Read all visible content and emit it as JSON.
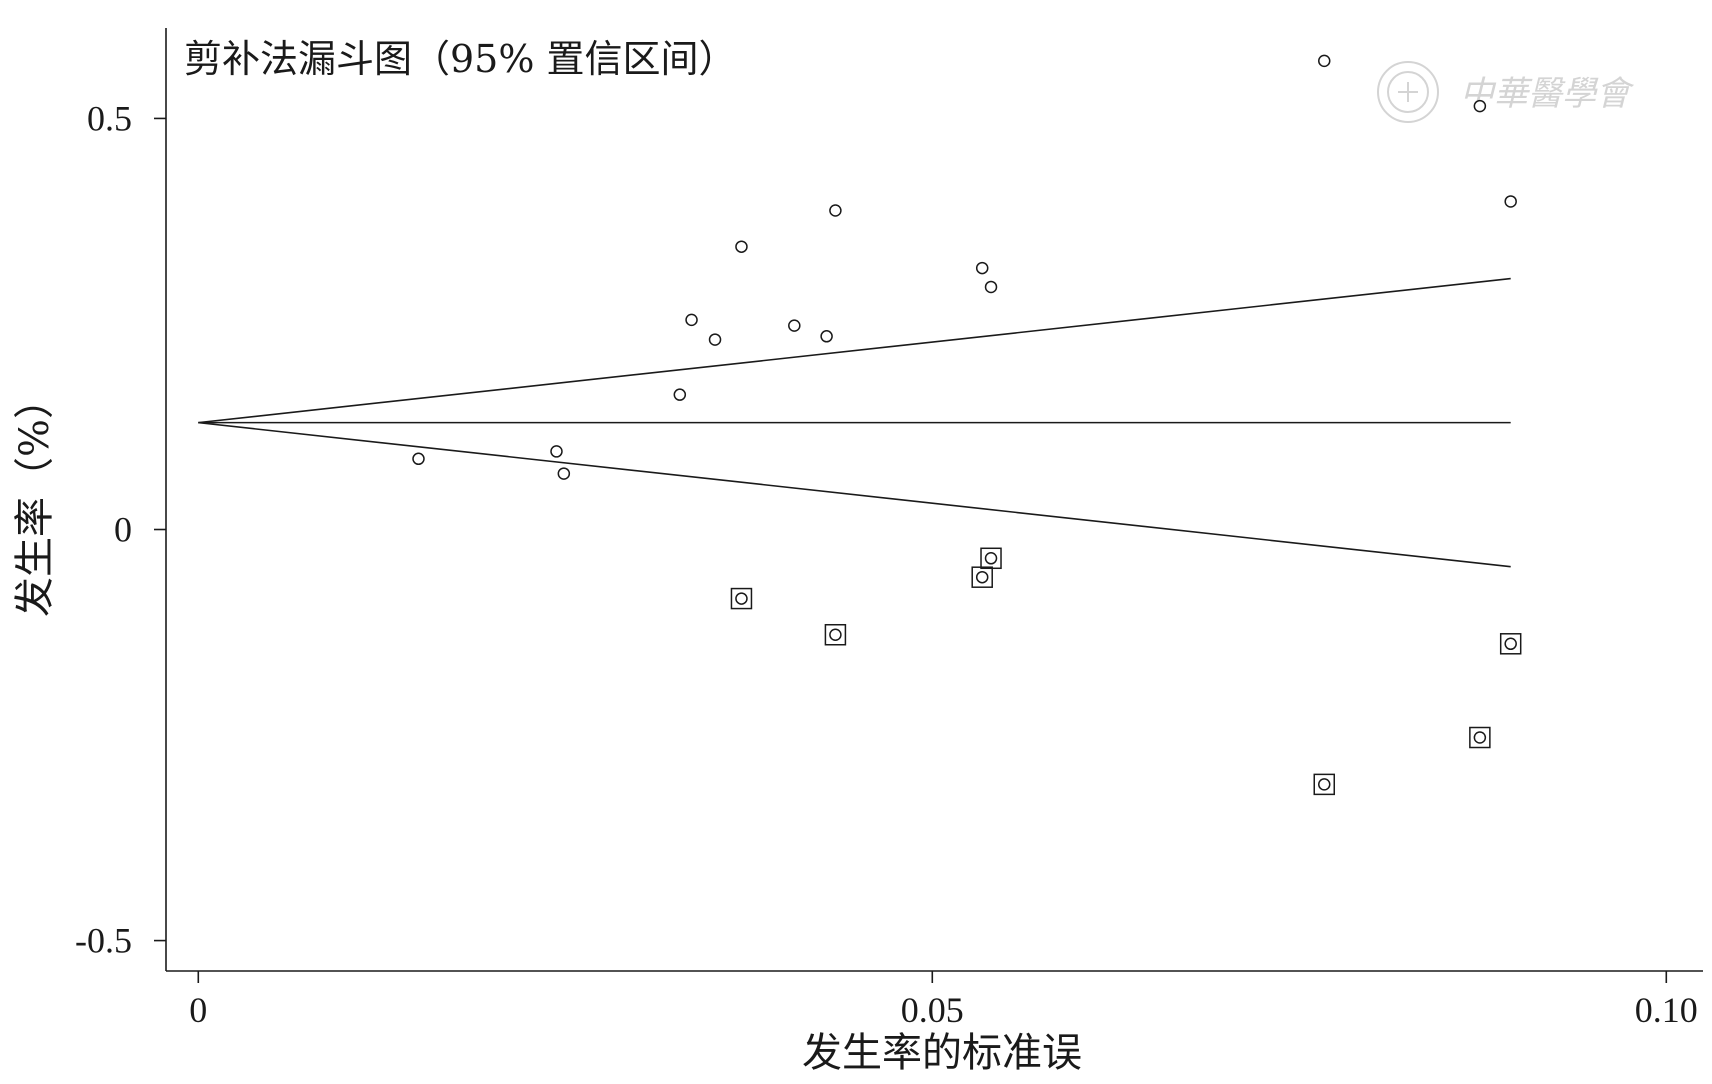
{
  "chart_data": {
    "type": "scatter",
    "title": "剪补法漏斗图（95% 置信区间）",
    "xlabel": "发生率的标准误",
    "ylabel": "发生率（%）",
    "xlim": [
      -0.0022,
      0.1025
    ],
    "ylim": [
      -0.537,
      0.61
    ],
    "x_ticks": [
      {
        "value": 0,
        "label": "0"
      },
      {
        "value": 0.05,
        "label": "0.05"
      },
      {
        "value": 0.1,
        "label": "0.10"
      }
    ],
    "y_ticks": [
      {
        "value": 0.5,
        "label": "0.5"
      },
      {
        "value": 0,
        "label": "0"
      },
      {
        "value": -0.5,
        "label": "-0.5"
      }
    ],
    "pooled_estimate": 0.13,
    "funnel_se_max": 0.0894,
    "funnel_z": 1.96,
    "observed_studies": [
      {
        "se": 0.015,
        "rate": 0.086
      },
      {
        "se": 0.0244,
        "rate": 0.095
      },
      {
        "se": 0.0249,
        "rate": 0.068
      },
      {
        "se": 0.0328,
        "rate": 0.164
      },
      {
        "se": 0.0336,
        "rate": 0.255
      },
      {
        "se": 0.0352,
        "rate": 0.231
      },
      {
        "se": 0.037,
        "rate": 0.344
      },
      {
        "se": 0.0406,
        "rate": 0.248
      },
      {
        "se": 0.0428,
        "rate": 0.235
      },
      {
        "se": 0.0434,
        "rate": 0.388
      },
      {
        "se": 0.0534,
        "rate": 0.318
      },
      {
        "se": 0.054,
        "rate": 0.295
      },
      {
        "se": 0.0767,
        "rate": 0.57
      },
      {
        "se": 0.0873,
        "rate": 0.515
      },
      {
        "se": 0.0894,
        "rate": 0.399
      }
    ],
    "imputed_studies": [
      {
        "se": 0.037,
        "rate": -0.084
      },
      {
        "se": 0.0434,
        "rate": -0.128
      },
      {
        "se": 0.0534,
        "rate": -0.058
      },
      {
        "se": 0.054,
        "rate": -0.035
      },
      {
        "se": 0.0767,
        "rate": -0.31
      },
      {
        "se": 0.0873,
        "rate": -0.253
      },
      {
        "se": 0.0894,
        "rate": -0.139
      }
    ]
  },
  "watermark": {
    "text": "中華醫學會",
    "icon": "seal-icon"
  }
}
